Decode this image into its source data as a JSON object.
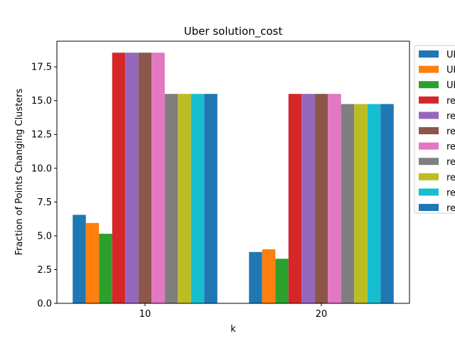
{
  "chart_data": {
    "type": "bar",
    "title": "Uber solution_cost",
    "xlabel": "k",
    "ylabel": "Fraction of Points Changing Clusters",
    "categories": [
      "10",
      "20"
    ],
    "ylim": [
      0,
      19.4
    ],
    "yticks": [
      "0.0",
      "2.5",
      "5.0",
      "7.5",
      "10.0",
      "12.5",
      "15.0",
      "17.5"
    ],
    "grid": false,
    "legend_placement": "outside-right",
    "series": [
      {
        "name": "Ub",
        "color": "#1f77b4",
        "values": [
          6.55,
          3.8
        ]
      },
      {
        "name": "Ub",
        "color": "#ff7f0e",
        "values": [
          5.95,
          4.0
        ]
      },
      {
        "name": "Ub",
        "color": "#2ca02c",
        "values": [
          5.15,
          3.3
        ]
      },
      {
        "name": "re",
        "color": "#d62728",
        "values": [
          18.55,
          15.5
        ]
      },
      {
        "name": "re",
        "color": "#9467bd",
        "values": [
          18.55,
          15.5
        ]
      },
      {
        "name": "re",
        "color": "#8c564b",
        "values": [
          18.55,
          15.5
        ]
      },
      {
        "name": "re",
        "color": "#e377c2",
        "values": [
          18.55,
          15.5
        ]
      },
      {
        "name": "re",
        "color": "#7f7f7f",
        "values": [
          15.5,
          14.75
        ]
      },
      {
        "name": "re",
        "color": "#bcbd22",
        "values": [
          15.5,
          14.75
        ]
      },
      {
        "name": "re",
        "color": "#17becf",
        "values": [
          15.5,
          14.75
        ]
      },
      {
        "name": "re",
        "color": "#1f77b4",
        "values": [
          15.5,
          14.75
        ]
      }
    ]
  }
}
